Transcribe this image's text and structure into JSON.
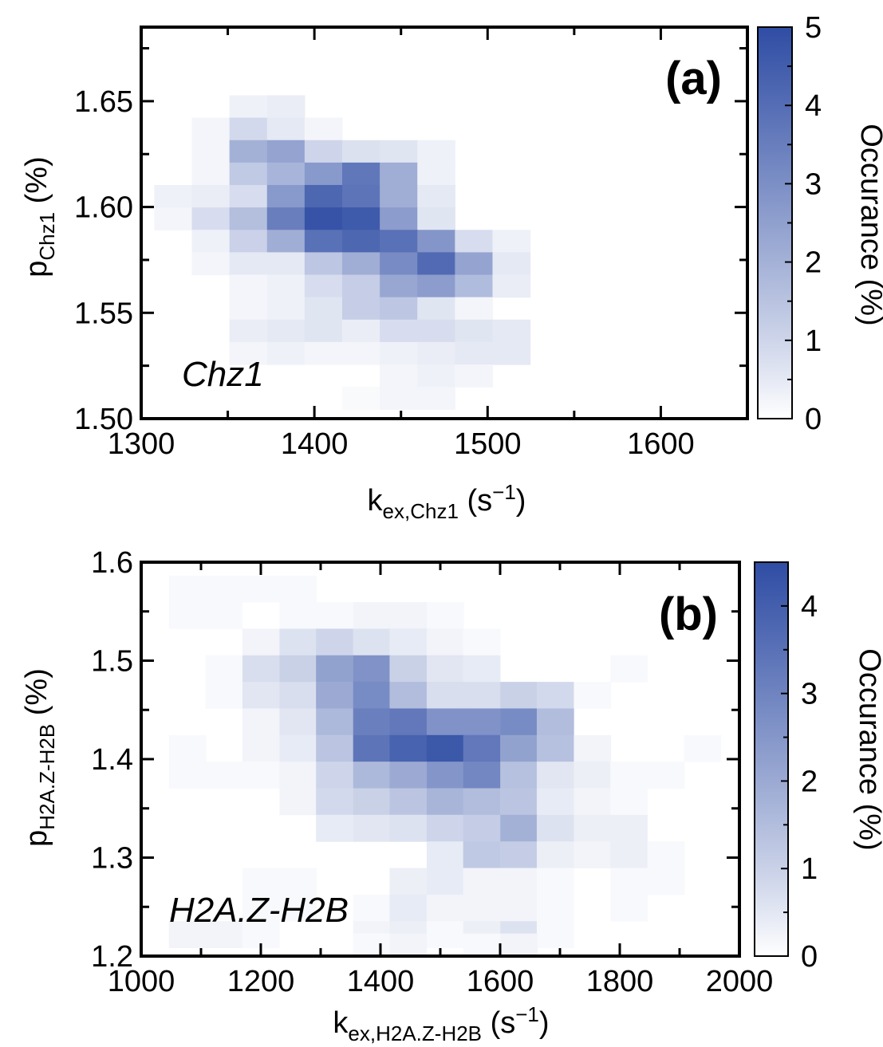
{
  "chart_data": [
    {
      "type": "heatmap",
      "panel_tag": "(a)",
      "annotation": "Chz1",
      "xlim": [
        1300,
        1650
      ],
      "ylim": [
        1.5,
        1.685
      ],
      "x_ticks": [
        1300,
        1400,
        1500,
        1600
      ],
      "x_tick_labels": [
        "1300",
        "1400",
        "1500",
        "1600"
      ],
      "y_ticks": [
        1.5,
        1.55,
        1.6,
        1.65
      ],
      "y_tick_labels": [
        "1.50",
        "1.55",
        "1.60",
        "1.65"
      ],
      "xlabel": {
        "base": "k",
        "sub": "ex,Chz1",
        "tail": " (s",
        "sup": "−1",
        "end": ")"
      },
      "ylabel": {
        "base": "p",
        "sub": "Chz1",
        "tail": " (%)"
      },
      "colorbar": {
        "label": "Occurance  (%)",
        "min": 0,
        "max": 5,
        "ticks": [
          0,
          1,
          2,
          3,
          4,
          5
        ],
        "tick_labels": [
          "0",
          "1",
          "2",
          "3",
          "4",
          "5"
        ]
      },
      "bin_width": 21.7,
      "bin_height": 0.0106,
      "cells": [
        [
          1361.8,
          1.6475,
          0.3
        ],
        [
          1383.5,
          1.6475,
          0.4
        ],
        [
          1340.1,
          1.6369,
          0.2
        ],
        [
          1361.8,
          1.6369,
          0.9
        ],
        [
          1383.5,
          1.6369,
          0.5
        ],
        [
          1405.2,
          1.6369,
          0.2
        ],
        [
          1340.1,
          1.6263,
          0.2
        ],
        [
          1361.8,
          1.6263,
          2.0
        ],
        [
          1383.5,
          1.6263,
          2.4
        ],
        [
          1405.2,
          1.6263,
          1.0
        ],
        [
          1426.9,
          1.6263,
          0.7
        ],
        [
          1448.6,
          1.6263,
          0.6
        ],
        [
          1470.3,
          1.6263,
          0.3
        ],
        [
          1340.1,
          1.6157,
          0.2
        ],
        [
          1361.8,
          1.6157,
          1.3
        ],
        [
          1383.5,
          1.6157,
          1.9
        ],
        [
          1405.2,
          1.6157,
          2.7
        ],
        [
          1426.9,
          1.6157,
          3.7
        ],
        [
          1448.6,
          1.6157,
          2.1
        ],
        [
          1470.3,
          1.6157,
          0.3
        ],
        [
          1318.4,
          1.6051,
          0.3
        ],
        [
          1340.1,
          1.6051,
          0.4
        ],
        [
          1361.8,
          1.6051,
          0.8
        ],
        [
          1383.5,
          1.6051,
          2.7
        ],
        [
          1405.2,
          1.6051,
          4.2
        ],
        [
          1426.9,
          1.6051,
          3.8
        ],
        [
          1448.6,
          1.6051,
          2.1
        ],
        [
          1470.3,
          1.6051,
          0.5
        ],
        [
          1318.4,
          1.5945,
          0.2
        ],
        [
          1340.1,
          1.5945,
          0.8
        ],
        [
          1361.8,
          1.5945,
          1.6
        ],
        [
          1383.5,
          1.5945,
          3.5
        ],
        [
          1405.2,
          1.5945,
          4.8
        ],
        [
          1426.9,
          1.5945,
          4.6
        ],
        [
          1448.6,
          1.5945,
          2.6
        ],
        [
          1470.3,
          1.5945,
          0.6
        ],
        [
          1340.1,
          1.5839,
          0.3
        ],
        [
          1361.8,
          1.5839,
          1.1
        ],
        [
          1383.5,
          1.5839,
          2.1
        ],
        [
          1405.2,
          1.5839,
          3.9
        ],
        [
          1426.9,
          1.5839,
          4.2
        ],
        [
          1448.6,
          1.5839,
          3.9
        ],
        [
          1470.3,
          1.5839,
          2.8
        ],
        [
          1492.0,
          1.5839,
          0.8
        ],
        [
          1513.7,
          1.5839,
          0.3
        ],
        [
          1340.1,
          1.5733,
          0.2
        ],
        [
          1361.8,
          1.5733,
          0.5
        ],
        [
          1383.5,
          1.5733,
          0.5
        ],
        [
          1405.2,
          1.5733,
          1.4
        ],
        [
          1426.9,
          1.5733,
          2.1
        ],
        [
          1448.6,
          1.5733,
          3.1
        ],
        [
          1470.3,
          1.5733,
          4.1
        ],
        [
          1492.0,
          1.5733,
          2.4
        ],
        [
          1513.7,
          1.5733,
          0.5
        ],
        [
          1361.8,
          1.5627,
          0.2
        ],
        [
          1383.5,
          1.5627,
          0.3
        ],
        [
          1405.2,
          1.5627,
          0.8
        ],
        [
          1426.9,
          1.5627,
          1.2
        ],
        [
          1448.6,
          1.5627,
          2.3
        ],
        [
          1470.3,
          1.5627,
          2.6
        ],
        [
          1492.0,
          1.5627,
          1.7
        ],
        [
          1513.7,
          1.5627,
          0.4
        ],
        [
          1361.8,
          1.5521,
          0.2
        ],
        [
          1383.5,
          1.5521,
          0.3
        ],
        [
          1405.2,
          1.5521,
          0.6
        ],
        [
          1426.9,
          1.5521,
          1.2
        ],
        [
          1448.6,
          1.5521,
          1.4
        ],
        [
          1470.3,
          1.5521,
          0.6
        ],
        [
          1492.0,
          1.5521,
          0.2
        ],
        [
          1383.5,
          1.5415,
          0.5
        ],
        [
          1405.2,
          1.5415,
          0.6
        ],
        [
          1426.9,
          1.5415,
          0.4
        ],
        [
          1448.6,
          1.5415,
          0.8
        ],
        [
          1470.3,
          1.5415,
          0.8
        ],
        [
          1492.0,
          1.5415,
          0.6
        ],
        [
          1513.7,
          1.5415,
          0.5
        ],
        [
          1361.8,
          1.5415,
          0.4
        ],
        [
          1361.8,
          1.5309,
          0.2
        ],
        [
          1383.5,
          1.5309,
          0.3
        ],
        [
          1405.2,
          1.5309,
          0.2
        ],
        [
          1426.9,
          1.5309,
          0.2
        ],
        [
          1448.6,
          1.5309,
          0.3
        ],
        [
          1470.3,
          1.5309,
          0.4
        ],
        [
          1492.0,
          1.5309,
          0.5
        ],
        [
          1513.7,
          1.5309,
          0.5
        ],
        [
          1448.6,
          1.5203,
          0.2
        ],
        [
          1470.3,
          1.5203,
          0.3
        ],
        [
          1492.0,
          1.5203,
          0.2
        ],
        [
          1426.9,
          1.5097,
          0.1
        ],
        [
          1448.6,
          1.5097,
          0.2
        ],
        [
          1470.3,
          1.5097,
          0.2
        ]
      ]
    },
    {
      "type": "heatmap",
      "panel_tag": "(b)",
      "annotation": "H2A.Z-H2B",
      "xlim": [
        1000,
        2000
      ],
      "ylim": [
        1.2,
        1.6
      ],
      "x_ticks": [
        1000,
        1200,
        1400,
        1600,
        1800,
        2000
      ],
      "x_tick_labels": [
        "1000",
        "1200",
        "1400",
        "1600",
        "1800",
        "2000"
      ],
      "y_ticks": [
        1.2,
        1.3,
        1.4,
        1.5,
        1.6
      ],
      "y_tick_labels": [
        "1.2",
        "1.3",
        "1.4",
        "1.5",
        "1.6"
      ],
      "xlabel": {
        "base": "k",
        "sub": "ex,H2A.Z-H2B",
        "tail": " (s",
        "sup": "−1",
        "end": ")"
      },
      "ylabel": {
        "base": "p",
        "sub": "H2A.Z-H2B",
        "tail": " (%)"
      },
      "colorbar": {
        "label": "Occurance (%)",
        "min": 0,
        "max": 4.5,
        "ticks": [
          0,
          1,
          2,
          3,
          4
        ],
        "tick_labels": [
          "0",
          "1",
          "2",
          "3",
          "4"
        ]
      },
      "bin_width": 61.5,
      "bin_height": 0.0269,
      "cells": [
        [
          1077,
          1.573,
          0.1
        ],
        [
          1138,
          1.573,
          0.1
        ],
        [
          1200,
          1.573,
          0.1
        ],
        [
          1262,
          1.573,
          0.1
        ],
        [
          1077,
          1.546,
          0.1
        ],
        [
          1138,
          1.546,
          0.1
        ],
        [
          1262,
          1.546,
          0.1
        ],
        [
          1323,
          1.546,
          0.1
        ],
        [
          1385,
          1.546,
          0.2
        ],
        [
          1446,
          1.546,
          0.2
        ],
        [
          1508,
          1.546,
          0.1
        ],
        [
          1200,
          1.519,
          0.2
        ],
        [
          1262,
          1.519,
          0.6
        ],
        [
          1323,
          1.519,
          0.9
        ],
        [
          1385,
          1.519,
          0.6
        ],
        [
          1446,
          1.519,
          0.4
        ],
        [
          1508,
          1.519,
          0.2
        ],
        [
          1569,
          1.519,
          0.1
        ],
        [
          1138,
          1.492,
          0.1
        ],
        [
          1200,
          1.492,
          0.7
        ],
        [
          1262,
          1.492,
          1.0
        ],
        [
          1323,
          1.492,
          2.2
        ],
        [
          1385,
          1.492,
          2.6
        ],
        [
          1446,
          1.492,
          1.0
        ],
        [
          1508,
          1.492,
          0.5
        ],
        [
          1569,
          1.492,
          0.4
        ],
        [
          1815,
          1.492,
          0.1
        ],
        [
          1138,
          1.465,
          0.1
        ],
        [
          1200,
          1.465,
          0.5
        ],
        [
          1262,
          1.465,
          0.7
        ],
        [
          1323,
          1.465,
          2.0
        ],
        [
          1385,
          1.465,
          2.8
        ],
        [
          1446,
          1.465,
          1.5
        ],
        [
          1508,
          1.465,
          0.7
        ],
        [
          1569,
          1.465,
          0.7
        ],
        [
          1631,
          1.465,
          1.0
        ],
        [
          1692,
          1.465,
          0.8
        ],
        [
          1754,
          1.465,
          0.1
        ],
        [
          1200,
          1.438,
          0.2
        ],
        [
          1262,
          1.438,
          0.5
        ],
        [
          1323,
          1.438,
          1.6
        ],
        [
          1385,
          1.438,
          3.1
        ],
        [
          1446,
          1.438,
          3.3
        ],
        [
          1508,
          1.438,
          2.6
        ],
        [
          1569,
          1.438,
          2.6
        ],
        [
          1631,
          1.438,
          2.8
        ],
        [
          1692,
          1.438,
          1.5
        ],
        [
          1077,
          1.411,
          0.1
        ],
        [
          1200,
          1.411,
          0.2
        ],
        [
          1262,
          1.411,
          0.4
        ],
        [
          1323,
          1.411,
          1.3
        ],
        [
          1385,
          1.411,
          3.4
        ],
        [
          1446,
          1.411,
          3.9
        ],
        [
          1508,
          1.411,
          4.2
        ],
        [
          1569,
          1.411,
          3.3
        ],
        [
          1631,
          1.411,
          2.2
        ],
        [
          1692,
          1.411,
          1.4
        ],
        [
          1754,
          1.411,
          0.2
        ],
        [
          1938,
          1.411,
          0.1
        ],
        [
          1077,
          1.384,
          0.1
        ],
        [
          1138,
          1.384,
          0.1
        ],
        [
          1200,
          1.384,
          0.1
        ],
        [
          1262,
          1.384,
          0.2
        ],
        [
          1323,
          1.384,
          0.9
        ],
        [
          1385,
          1.384,
          1.6
        ],
        [
          1446,
          1.384,
          2.0
        ],
        [
          1508,
          1.384,
          2.5
        ],
        [
          1569,
          1.384,
          2.9
        ],
        [
          1631,
          1.384,
          1.4
        ],
        [
          1692,
          1.384,
          0.5
        ],
        [
          1754,
          1.384,
          0.3
        ],
        [
          1815,
          1.384,
          0.1
        ],
        [
          1877,
          1.384,
          0.1
        ],
        [
          1262,
          1.357,
          0.2
        ],
        [
          1323,
          1.357,
          0.8
        ],
        [
          1385,
          1.357,
          1.0
        ],
        [
          1446,
          1.357,
          1.3
        ],
        [
          1508,
          1.357,
          1.7
        ],
        [
          1569,
          1.357,
          1.5
        ],
        [
          1631,
          1.357,
          1.3
        ],
        [
          1692,
          1.357,
          0.4
        ],
        [
          1754,
          1.357,
          0.2
        ],
        [
          1815,
          1.357,
          0.1
        ],
        [
          1323,
          1.33,
          0.4
        ],
        [
          1385,
          1.33,
          0.5
        ],
        [
          1446,
          1.33,
          0.6
        ],
        [
          1508,
          1.33,
          0.9
        ],
        [
          1569,
          1.33,
          1.1
        ],
        [
          1631,
          1.33,
          1.8
        ],
        [
          1692,
          1.33,
          0.6
        ],
        [
          1754,
          1.33,
          0.3
        ],
        [
          1815,
          1.33,
          0.3
        ],
        [
          1508,
          1.303,
          0.4
        ],
        [
          1569,
          1.303,
          1.2
        ],
        [
          1631,
          1.303,
          1.1
        ],
        [
          1692,
          1.303,
          0.3
        ],
        [
          1754,
          1.303,
          0.2
        ],
        [
          1815,
          1.303,
          0.3
        ],
        [
          1877,
          1.303,
          0.1
        ],
        [
          1200,
          1.276,
          0.1
        ],
        [
          1262,
          1.276,
          0.1
        ],
        [
          1446,
          1.276,
          0.3
        ],
        [
          1508,
          1.276,
          0.4
        ],
        [
          1569,
          1.276,
          0.2
        ],
        [
          1631,
          1.276,
          0.2
        ],
        [
          1692,
          1.276,
          0.1
        ],
        [
          1815,
          1.276,
          0.1
        ],
        [
          1877,
          1.276,
          0.1
        ],
        [
          1200,
          1.249,
          0.1
        ],
        [
          1262,
          1.249,
          0.1
        ],
        [
          1385,
          1.249,
          0.1
        ],
        [
          1446,
          1.249,
          0.4
        ],
        [
          1508,
          1.249,
          0.2
        ],
        [
          1569,
          1.249,
          0.2
        ],
        [
          1631,
          1.249,
          0.2
        ],
        [
          1692,
          1.249,
          0.1
        ],
        [
          1815,
          1.249,
          0.1
        ],
        [
          1077,
          1.222,
          0.2
        ],
        [
          1138,
          1.222,
          0.2
        ],
        [
          1200,
          1.222,
          0.1
        ],
        [
          1385,
          1.222,
          0.2
        ],
        [
          1446,
          1.222,
          0.3
        ],
        [
          1508,
          1.222,
          0.1
        ],
        [
          1569,
          1.222,
          0.3
        ],
        [
          1631,
          1.222,
          0.6
        ],
        [
          1692,
          1.222,
          0.1
        ],
        [
          1385,
          1.2095,
          0.1
        ],
        [
          1446,
          1.2095,
          0.2
        ],
        [
          1569,
          1.2095,
          0.1
        ],
        [
          1631,
          1.2095,
          0.2
        ]
      ]
    }
  ]
}
